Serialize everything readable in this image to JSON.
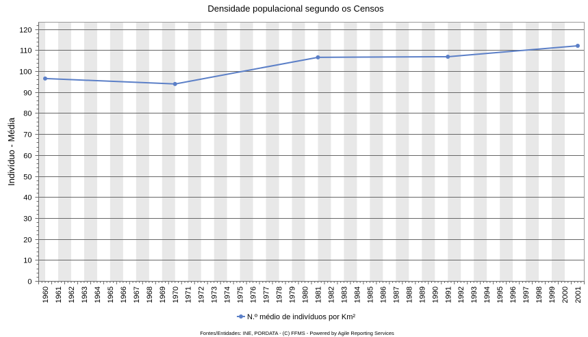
{
  "chart_data": {
    "type": "line",
    "title": "Densidade populacional segundo os Censos",
    "xlabel": "",
    "ylabel": "Indivíduo - Média",
    "categories": [
      "1960",
      "1961",
      "1962",
      "1963",
      "1964",
      "1965",
      "1966",
      "1967",
      "1968",
      "1969",
      "1970",
      "1971",
      "1972",
      "1973",
      "1974",
      "1975",
      "1976",
      "1977",
      "1978",
      "1979",
      "1980",
      "1981",
      "1982",
      "1983",
      "1984",
      "1985",
      "1986",
      "1987",
      "1988",
      "1989",
      "1990",
      "1991",
      "1992",
      "1993",
      "1994",
      "1995",
      "1996",
      "1997",
      "1998",
      "1999",
      "2000",
      "2001"
    ],
    "series": [
      {
        "name": "N.º médio de indivíduos por Km²",
        "color": "#5b7fc7",
        "points": [
          {
            "x": "1960",
            "y": 96.5
          },
          {
            "x": "1970",
            "y": 93.9
          },
          {
            "x": "1981",
            "y": 106.6
          },
          {
            "x": "1991",
            "y": 106.9
          },
          {
            "x": "2001",
            "y": 112.1
          }
        ]
      }
    ],
    "ylim": [
      0,
      123.5
    ],
    "yticks": [
      0,
      10,
      20,
      30,
      40,
      50,
      60,
      70,
      80,
      90,
      100,
      110,
      120
    ],
    "grid": true,
    "legend": "bottom-center"
  },
  "footer": "Fontes/Entidades: INE, PORDATA - (C) FFMS - Powered by Agile Reporting Services"
}
